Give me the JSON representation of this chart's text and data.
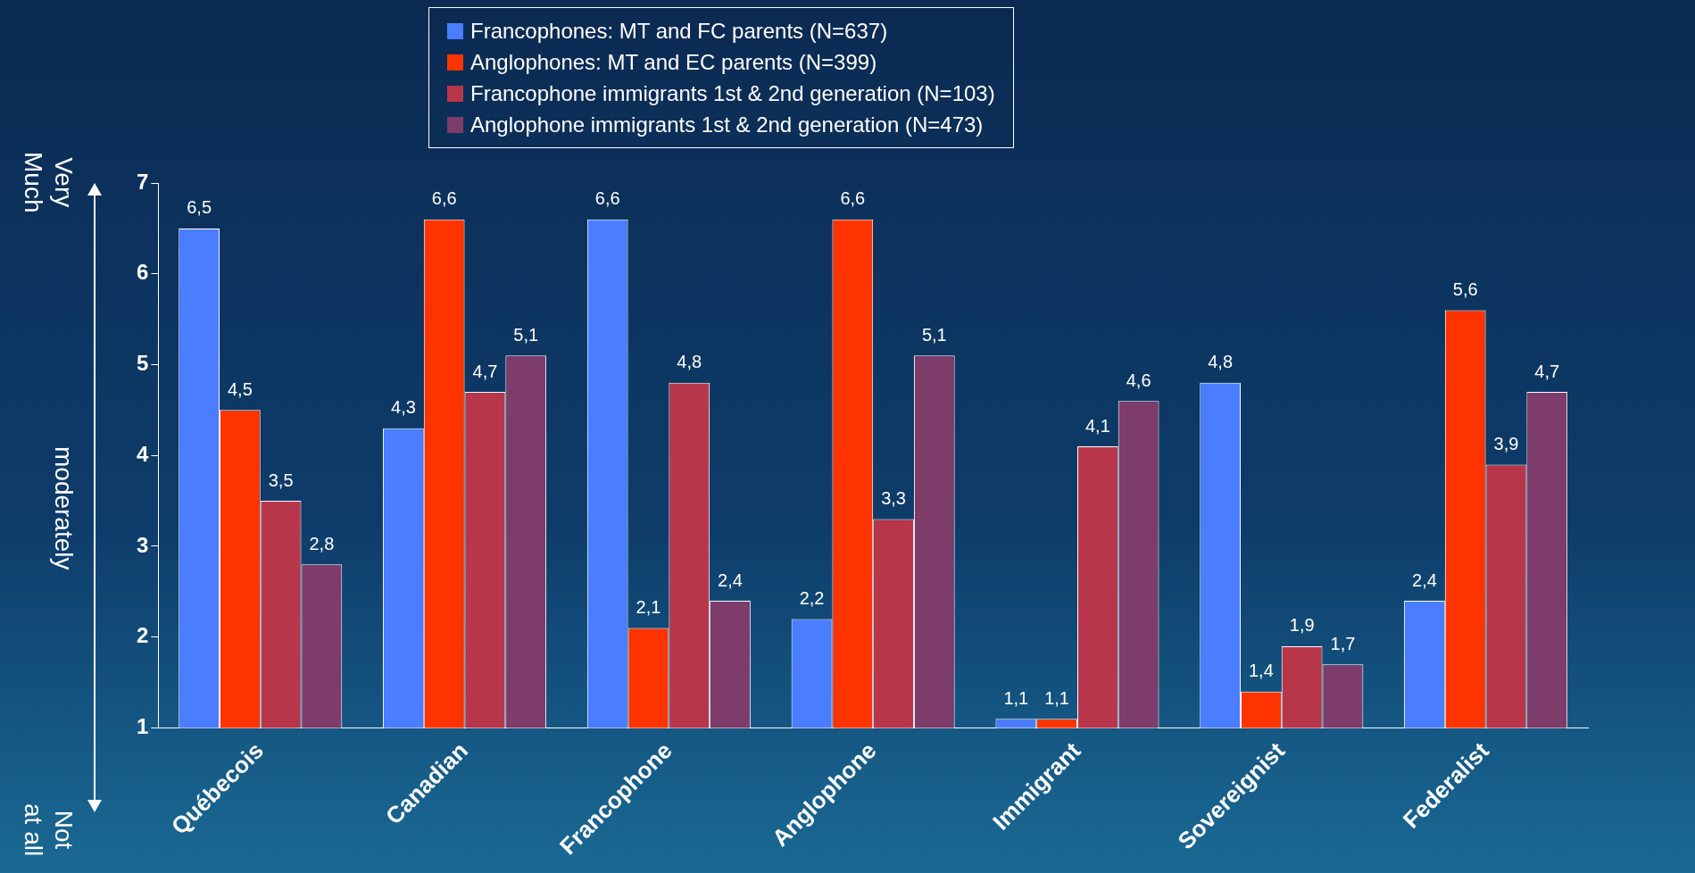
{
  "chart_data": {
    "type": "bar",
    "categories": [
      "Québecois",
      "Canadian",
      "Francophone",
      "Anglophone",
      "Immigrant",
      "Sovereignist",
      "Federalist"
    ],
    "series": [
      {
        "name": "Francophones: MT and FC parents (N=637)",
        "color": "#4a7dff",
        "values": [
          6.5,
          4.3,
          6.6,
          2.2,
          1.1,
          4.8,
          2.4
        ],
        "value_labels": [
          "6,5",
          "4,3",
          "6,6",
          "2,2",
          "1,1",
          "4,8",
          "2,4"
        ]
      },
      {
        "name": "Anglophones: MT and EC parents (N=399)",
        "color": "#ff3300",
        "values": [
          4.5,
          6.6,
          2.1,
          6.6,
          1.1,
          1.4,
          5.6
        ],
        "value_labels": [
          "4,5",
          "6,6",
          "2,1",
          "6,6",
          "1,1",
          "1,4",
          "5,6"
        ]
      },
      {
        "name": "Francophone immigrants 1st & 2nd generation (N=103)",
        "color": "#b8364a",
        "values": [
          3.5,
          4.7,
          4.8,
          3.3,
          4.1,
          1.9,
          3.9
        ],
        "value_labels": [
          "3,5",
          "4,7",
          "4,8",
          "3,3",
          "4,1",
          "1,9",
          "3,9"
        ]
      },
      {
        "name": "Anglophone immigrants 1st & 2nd generation (N=473)",
        "color": "#7d3c6a",
        "values": [
          2.8,
          5.1,
          2.4,
          5.1,
          4.6,
          1.7,
          4.7
        ],
        "value_labels": [
          "2,8",
          "5,1",
          "2,4",
          "5,1",
          "4,6",
          "1,7",
          "4,7"
        ]
      }
    ],
    "ylim": [
      1,
      7
    ],
    "yticks": [
      1,
      2,
      3,
      4,
      5,
      6,
      7
    ],
    "grid": false,
    "legend": "top",
    "annotations": [
      "Very Much",
      "moderately",
      "Not at all"
    ]
  }
}
